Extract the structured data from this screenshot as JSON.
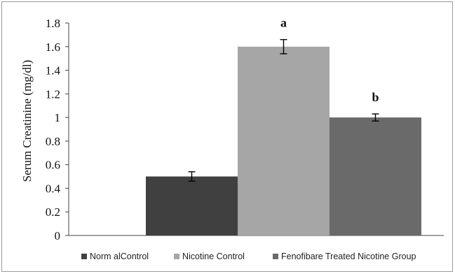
{
  "chart_data": {
    "type": "bar",
    "categories": [
      "Norm al Control",
      "Nicotine Control",
      "Fenofibare Treated Nicotine Group"
    ],
    "values": [
      0.5,
      1.6,
      1.0
    ],
    "errors": [
      0.04,
      0.06,
      0.03
    ],
    "significance_labels": [
      "",
      "a",
      "b"
    ],
    "colors": [
      "#404040",
      "#a6a6a6",
      "#6a6a6a"
    ],
    "ylabel": "Serum Creatinine (mg/dl)",
    "xlabel": "",
    "title": "",
    "ylim": [
      0,
      1.8
    ],
    "yticks": [
      {
        "value": 0,
        "label": "0"
      },
      {
        "value": 0.2,
        "label": "0.2"
      },
      {
        "value": 0.4,
        "label": "0.4"
      },
      {
        "value": 0.6,
        "label": "0.6"
      },
      {
        "value": 0.8,
        "label": "0.8"
      },
      {
        "value": 1.0,
        "label": "1"
      },
      {
        "value": 1.2,
        "label": "1.2"
      },
      {
        "value": 1.4,
        "label": "1.4"
      },
      {
        "value": 1.6,
        "label": "1.6"
      },
      {
        "value": 1.8,
        "label": "1.8"
      }
    ],
    "legend": {
      "position": "bottom",
      "entries": [
        "Norm alControl",
        "Nicotine Control",
        "Fenofibare Treated Nicotine Group"
      ]
    },
    "grid": false
  }
}
